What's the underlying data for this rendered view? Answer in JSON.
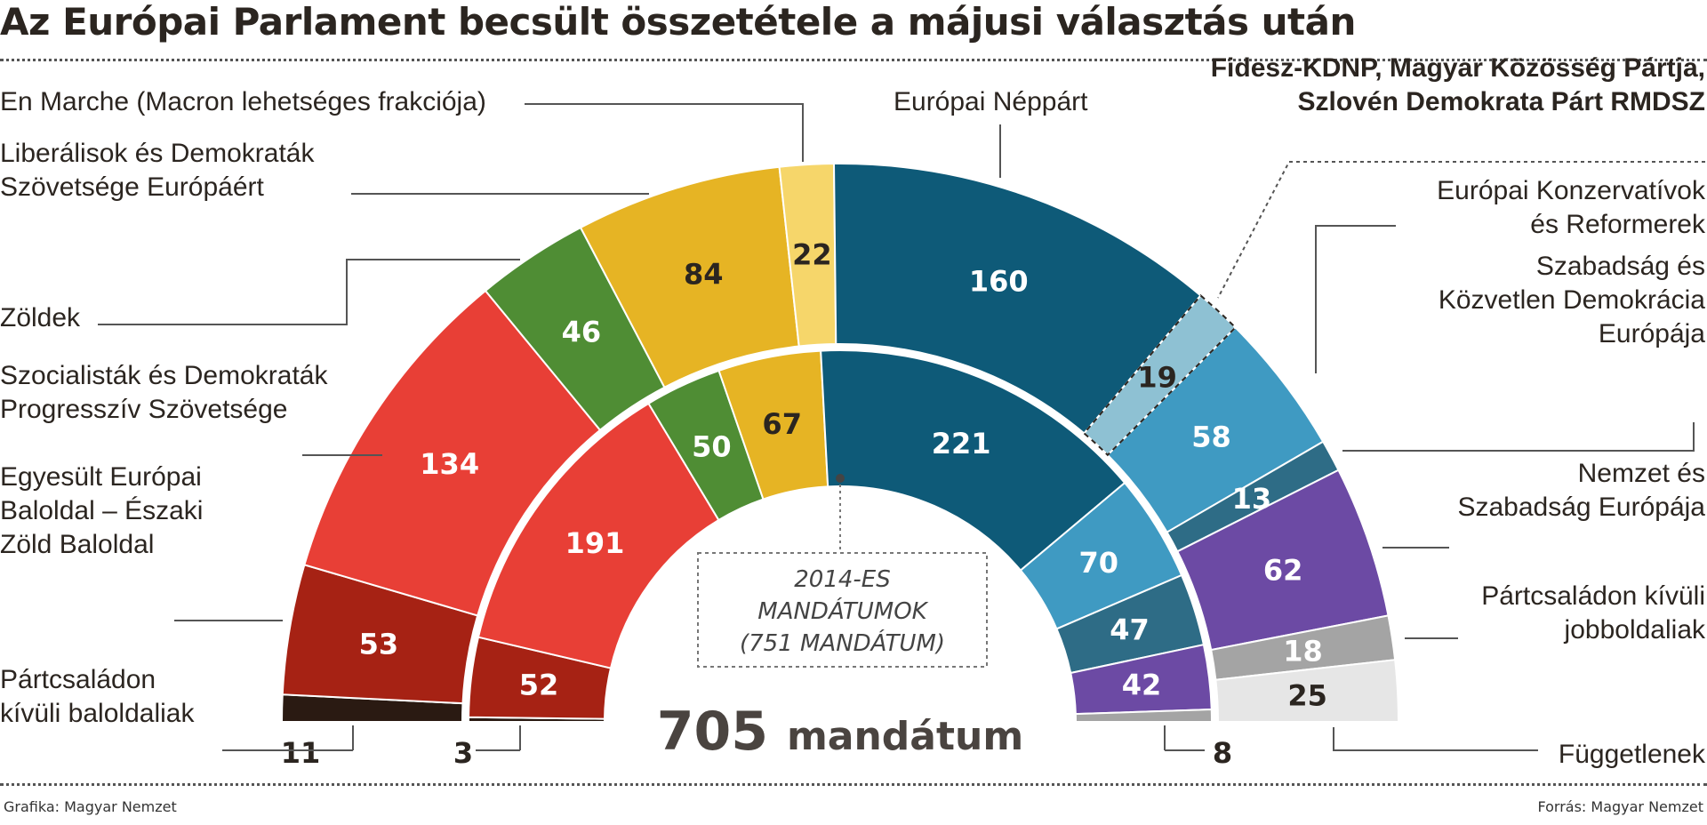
{
  "title": "Az Európai Parlament becsült összetétele a májusi választás után",
  "credit_left": "Grafika: Magyar Nemzet",
  "credit_right": "Forrás: Magyar Nemzet",
  "chart_data": {
    "type": "pie",
    "subtype": "parliament-semicircle",
    "outer": {
      "total_label_number": "705",
      "total_label_unit": "mandátum",
      "total": 705,
      "segments": [
        {
          "value": 11,
          "color": "#2a1a12",
          "label_lines": [
            "Pártcsaládon",
            "kívüli baloldaliak"
          ]
        },
        {
          "value": 53,
          "color": "#a62214",
          "label_lines": [
            "Egyesült Európai",
            "Baloldal – Északi",
            "Zöld Baloldal"
          ]
        },
        {
          "value": 134,
          "color": "#e83f36",
          "label_lines": [
            "Szocialisták és Demokraták",
            "Progresszív Szövetsége"
          ]
        },
        {
          "value": 46,
          "color": "#4f8d34",
          "label_lines": [
            "Zöldek"
          ]
        },
        {
          "value": 84,
          "color": "#e6b424",
          "label_lines": [
            "Liberálisok és Demokraták",
            "Szövetsége Európáért"
          ]
        },
        {
          "value": 22,
          "color": "#f6d66a",
          "label_lines": [
            "En Marche (Macron lehetséges frakciója)"
          ]
        },
        {
          "value": 160,
          "color": "#0e5a78",
          "label_lines": [
            "Európai Néppárt"
          ]
        },
        {
          "value": 19,
          "color": "#8ec1d3",
          "label_lines": [
            "Fidesz-KDNP, Magyar Közösség Pártja,",
            "Szlovén Demokrata Párt RMDSZ"
          ]
        },
        {
          "value": 58,
          "color": "#3f9ac2",
          "label_lines": [
            "Európai Konzervatívok",
            "és Reformerek"
          ]
        },
        {
          "value": 13,
          "color": "#2e6c86",
          "label_lines": [
            "Szabadság és",
            "Közvetlen Demokrácia",
            "Európája"
          ]
        },
        {
          "value": 62,
          "color": "#6c4aa4",
          "label_lines": [
            "Nemzet és",
            "Szabadság Európája"
          ]
        },
        {
          "value": 18,
          "color": "#a4a4a4",
          "label_lines": [
            "Pártcsaládon kívüli",
            "jobboldaliak"
          ]
        },
        {
          "value": 25,
          "color": "#e6e6e6",
          "label_lines": [
            "Függetlenek"
          ]
        }
      ]
    },
    "inner": {
      "note_lines": [
        "2014-ES",
        "MANDÁTUMOK",
        "(751 MANDÁTUM)"
      ],
      "total": 751,
      "segments": [
        {
          "value": 3,
          "color": "#2a1a12"
        },
        {
          "value": 52,
          "color": "#a62214"
        },
        {
          "value": 191,
          "color": "#e83f36"
        },
        {
          "value": 50,
          "color": "#4f8d34"
        },
        {
          "value": 67,
          "color": "#e6b424"
        },
        {
          "value": 221,
          "color": "#0e5a78"
        },
        {
          "value": 70,
          "color": "#3f9ac2"
        },
        {
          "value": 47,
          "color": "#2e6c86"
        },
        {
          "value": 42,
          "color": "#6c4aa4"
        },
        {
          "value": 8,
          "color": "#a4a4a4"
        }
      ]
    }
  }
}
